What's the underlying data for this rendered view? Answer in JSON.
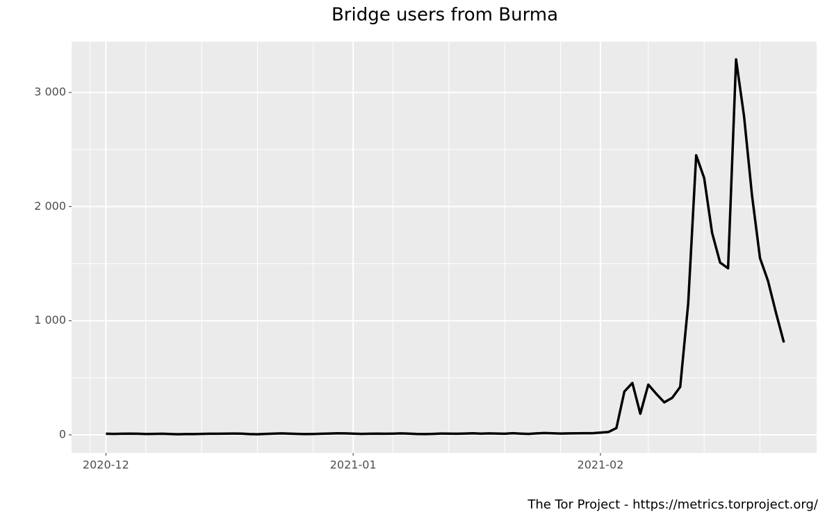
{
  "chart_data": {
    "type": "line",
    "title": "Bridge users from Burma",
    "caption": "The Tor Project - https://metrics.torproject.org/",
    "color": "#000000",
    "x": [
      0,
      1,
      2,
      3,
      4,
      5,
      6,
      7,
      8,
      9,
      10,
      11,
      12,
      13,
      14,
      15,
      16,
      17,
      18,
      19,
      20,
      21,
      22,
      23,
      24,
      25,
      26,
      27,
      28,
      29,
      30,
      31,
      32,
      33,
      34,
      35,
      36,
      37,
      38,
      39,
      40,
      41,
      42,
      43,
      44,
      45,
      46,
      47,
      48,
      49,
      50,
      51,
      52,
      53,
      54,
      55,
      56,
      57,
      58,
      59,
      60,
      61,
      62,
      63,
      64,
      65,
      66,
      67,
      68,
      69,
      70,
      71,
      72,
      73,
      74,
      75,
      76,
      77,
      78,
      79,
      80,
      81,
      82,
      83,
      84,
      85
    ],
    "values": [
      10,
      9,
      10,
      11,
      10,
      8,
      9,
      10,
      8,
      6,
      7,
      7,
      9,
      10,
      10,
      11,
      12,
      11,
      7,
      6,
      9,
      11,
      13,
      11,
      9,
      7,
      8,
      10,
      12,
      14,
      13,
      11,
      9,
      10,
      11,
      10,
      11,
      13,
      11,
      8,
      7,
      9,
      12,
      11,
      10,
      12,
      14,
      11,
      13,
      12,
      10,
      15,
      11,
      9,
      13,
      16,
      14,
      12,
      13,
      14,
      15,
      15,
      20,
      25,
      60,
      380,
      455,
      185,
      440,
      360,
      285,
      325,
      420,
      1150,
      2450,
      2250,
      1770,
      1510,
      1460,
      3290,
      2790,
      2100,
      1550,
      1350,
      1070,
      810
    ],
    "xlim": [
      -4.3,
      89.1
    ],
    "xticks": [
      {
        "value": 0,
        "label": "2020-12"
      },
      {
        "value": 31,
        "label": "2021-01"
      },
      {
        "value": 62,
        "label": "2021-02"
      }
    ],
    "xminor": [
      -2,
      5,
      12,
      19,
      26,
      36,
      43,
      50,
      57,
      68,
      75,
      82
    ],
    "ylim": [
      -158,
      3445
    ],
    "yticks": [
      0,
      {
        "value": 1000,
        "label": "1 000"
      },
      {
        "value": 2000,
        "label": "2 000"
      },
      {
        "value": 3000,
        "label": "3 000"
      }
    ],
    "yminor": [
      500,
      1500,
      2500
    ],
    "grid": true
  }
}
